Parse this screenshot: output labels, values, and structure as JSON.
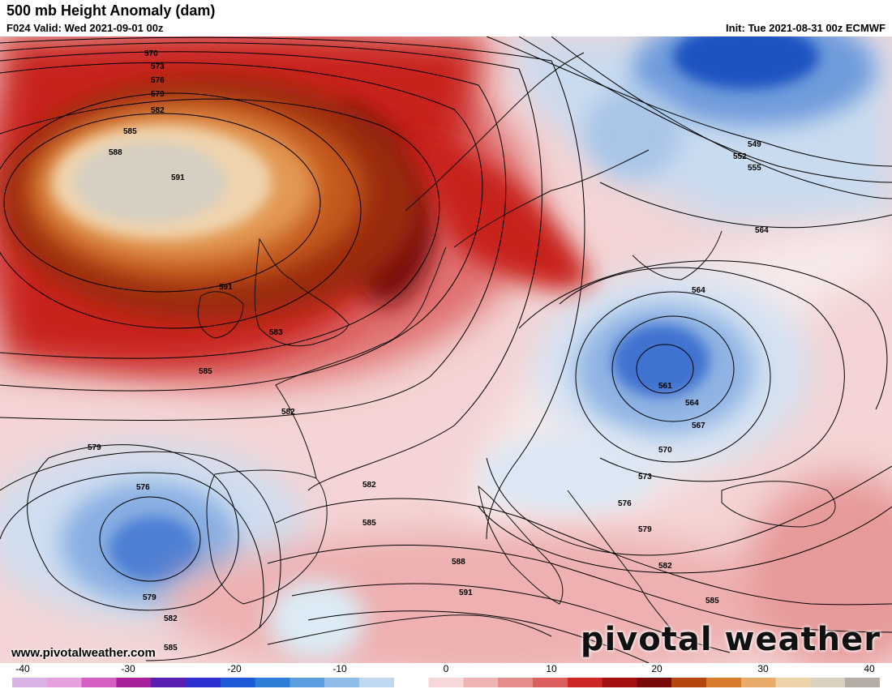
{
  "header": {
    "title": "500 mb Height Anomaly (dam)",
    "valid": "F024 Valid: Wed 2021-09-01 00z",
    "init": "Init: Tue 2021-08-31 00z ECMWF"
  },
  "branding": {
    "website": "www.pivotalweather.com",
    "logo_text": "pivotal weather"
  },
  "colorbar": {
    "ticks": [
      "-40",
      "-30",
      "-20",
      "-10",
      "0",
      "10",
      "20",
      "30",
      "40"
    ],
    "colors": [
      "#d9b3e6",
      "#e6a0de",
      "#d65fc4",
      "#a8209b",
      "#5a1eb0",
      "#2d2fd0",
      "#1e5ad6",
      "#2f7fd8",
      "#5a9ee0",
      "#8fbde8",
      "#c0d8ef",
      "#ffffff",
      "#f6d8d8",
      "#eeb3b3",
      "#e58c8c",
      "#dc5f5f",
      "#cc2828",
      "#a40f0f",
      "#7a0a0a",
      "#b4460f",
      "#d77b2a",
      "#e8ab6a",
      "#efd3a8",
      "#d9d0c0",
      "#b5aca6"
    ]
  },
  "contour_labels": [
    "570",
    "573",
    "576",
    "579",
    "582",
    "585",
    "588",
    "591",
    "591",
    "583",
    "585",
    "582",
    "549",
    "552",
    "555",
    "564",
    "564",
    "561",
    "564",
    "567",
    "570",
    "573",
    "576",
    "579",
    "582",
    "585",
    "579",
    "576",
    "579",
    "582",
    "585",
    "582",
    "585",
    "588",
    "591"
  ],
  "colors": {
    "positive_peak": "#7a0a0a",
    "negative_peak": "#1e5ad6"
  }
}
